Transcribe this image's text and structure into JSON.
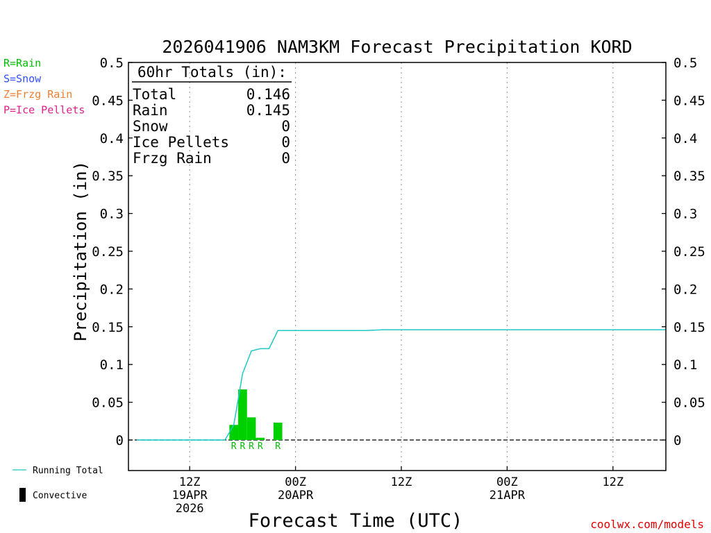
{
  "chart_data": {
    "type": "bar",
    "title": "2026041906 NAM3KM Forecast Precipitation KORD",
    "xlabel": "Forecast Time (UTC)",
    "ylabel": "Precipitation (in)",
    "ylim": [
      -0.04,
      0.5
    ],
    "x_unit": "forecast hour",
    "xlim": [
      0,
      60
    ],
    "grid": "vertical dotted at 6-hourly-labelled times",
    "yticks": [
      0,
      0.05,
      0.1,
      0.15,
      0.2,
      0.25,
      0.3,
      0.35,
      0.4,
      0.45,
      0.5
    ],
    "ytick_labels": [
      "0",
      "0.05",
      "0.1",
      "0.15",
      "0.2",
      "0.25",
      "0.3",
      "0.35",
      "0.4",
      "0.45",
      "0.5"
    ],
    "xticks": [
      {
        "hour": 6,
        "lines": [
          "12Z",
          "19APR",
          "2026"
        ]
      },
      {
        "hour": 18,
        "lines": [
          "00Z",
          "20APR"
        ]
      },
      {
        "hour": 30,
        "lines": [
          "12Z"
        ]
      },
      {
        "hour": 42,
        "lines": [
          "00Z",
          "21APR"
        ]
      },
      {
        "hour": 54,
        "lines": [
          "12Z"
        ]
      }
    ],
    "bars": {
      "color": "#00d000",
      "items": [
        {
          "hour": 11,
          "value": 0.02,
          "type": "R"
        },
        {
          "hour": 12,
          "value": 0.067,
          "type": "R"
        },
        {
          "hour": 13,
          "value": 0.03,
          "type": "R"
        },
        {
          "hour": 14,
          "value": 0.003,
          "type": "R"
        },
        {
          "hour": 16,
          "value": 0.023,
          "type": "R"
        }
      ]
    },
    "running_total": {
      "name": "Running Total",
      "color": "#20c8c8",
      "points": [
        [
          0,
          0
        ],
        [
          10,
          0
        ],
        [
          11,
          0.02
        ],
        [
          12,
          0.088
        ],
        [
          13,
          0.118
        ],
        [
          14,
          0.121
        ],
        [
          15,
          0.121
        ],
        [
          16,
          0.145
        ],
        [
          20,
          0.145
        ],
        [
          26,
          0.145
        ],
        [
          28,
          0.146
        ],
        [
          60,
          0.146
        ]
      ]
    },
    "totals_box": {
      "heading": "60hr Totals (in):",
      "rows": [
        {
          "label": "Total",
          "value": "0.146"
        },
        {
          "label": "Rain",
          "value": "0.145"
        },
        {
          "label": "Snow",
          "value": "0"
        },
        {
          "label": "Ice Pellets",
          "value": "0"
        },
        {
          "label": "Frzg Rain",
          "value": "0"
        }
      ]
    },
    "precip_type_legend": [
      {
        "text": "R=Rain",
        "color": "#00c000"
      },
      {
        "text": "S=Snow",
        "color": "#3050ff"
      },
      {
        "text": "Z=Frzg Rain",
        "color": "#f08030"
      },
      {
        "text": "P=Ice Pellets",
        "color": "#e0208a"
      }
    ],
    "legend": [
      {
        "text": "Running Total",
        "kind": "line",
        "color": "#20c8c8"
      },
      {
        "text": "Convective",
        "kind": "block",
        "color": "#000000"
      }
    ],
    "credit": "coolwx.com/models",
    "credit_color": "#e00000"
  }
}
